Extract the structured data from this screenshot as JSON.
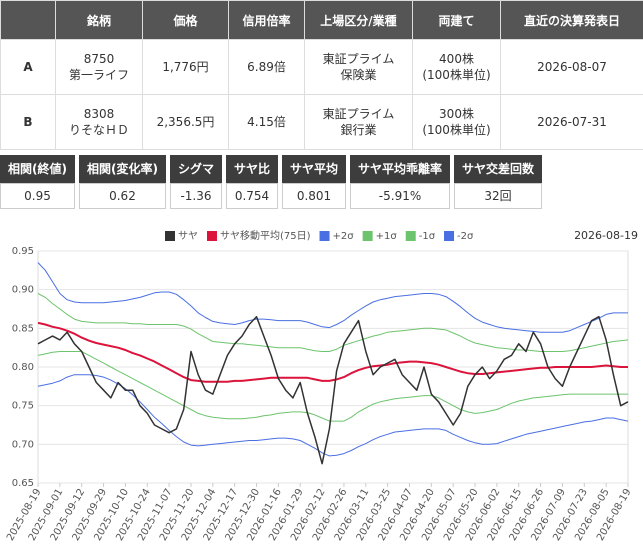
{
  "summary_table": {
    "headers": [
      "銘柄",
      "価格",
      "信用倍率",
      "上場区分/業種",
      "両建て",
      "直近の決算発表日"
    ],
    "rows": [
      [
        "A",
        "8750\n第一ライフ",
        "1,776円",
        "6.89倍",
        "東証プライム\n保険業",
        "400株\n(100株単位)",
        "2026-08-07"
      ],
      [
        "B",
        "8308\nりそなＨＤ",
        "2,356.5円",
        "4.15倍",
        "東証プライム\n銀行業",
        "300株\n(100株単位)",
        "2026-07-31"
      ]
    ]
  },
  "stats": {
    "headers": [
      "相関(終値)",
      "相関(変化率)",
      "シグマ",
      "サヤ比",
      "サヤ平均",
      "サヤ平均乖離率",
      "サヤ交差回数"
    ],
    "values": [
      "0.95",
      "0.62",
      "-1.36",
      "0.754",
      "0.801",
      "-5.91%",
      "32回"
    ]
  },
  "chart_data": {
    "type": "line",
    "date": "2026-08-19",
    "categories": [
      "2025-08-19",
      null,
      null,
      "2025-09-01",
      null,
      null,
      "2025-09-12",
      null,
      null,
      "2025-09-29",
      null,
      null,
      "2025-10-10",
      null,
      null,
      "2025-10-24",
      null,
      null,
      "2025-11-07",
      null,
      null,
      "2025-11-20",
      null,
      null,
      "2025-12-04",
      null,
      null,
      "2025-12-17",
      null,
      null,
      "2025-12-30",
      null,
      null,
      "2026-01-16",
      null,
      null,
      "2026-01-29",
      null,
      null,
      "2026-02-12",
      null,
      null,
      "2026-02-26",
      null,
      null,
      "2026-03-11",
      null,
      null,
      "2026-03-25",
      null,
      null,
      "2026-04-07",
      null,
      null,
      "2026-04-20",
      null,
      null,
      "2026-05-07",
      null,
      null,
      "2026-05-20",
      null,
      null,
      "2026-06-02",
      null,
      null,
      "2026-06-15",
      null,
      null,
      "2026-06-26",
      null,
      null,
      "2026-07-09",
      null,
      null,
      "2026-07-23",
      null,
      null,
      "2026-08-05",
      null,
      null,
      "2026-08-19"
    ],
    "ylim": [
      0.65,
      0.95
    ],
    "yticks": [
      0.65,
      {
        "value": 0.7,
        "label": "0.70"
      },
      0.75,
      {
        "value": 0.8,
        "label": "0.80"
      },
      0.85,
      {
        "value": 0.9,
        "label": "0.90"
      },
      0.95
    ],
    "grid": true,
    "series": [
      {
        "name": "サヤ",
        "color": "#333333",
        "width": 1.5,
        "values": [
          0.83,
          0.835,
          0.84,
          0.835,
          0.845,
          0.83,
          0.82,
          0.8,
          0.78,
          0.77,
          0.76,
          0.78,
          0.77,
          0.77,
          0.75,
          0.74,
          0.725,
          0.72,
          0.715,
          0.72,
          0.745,
          0.82,
          0.79,
          0.77,
          0.765,
          0.79,
          0.815,
          0.83,
          0.84,
          0.855,
          0.865,
          0.84,
          0.815,
          0.785,
          0.77,
          0.76,
          0.78,
          0.74,
          0.71,
          0.675,
          0.72,
          0.795,
          0.83,
          0.845,
          0.86,
          0.82,
          0.79,
          0.8,
          0.805,
          0.81,
          0.79,
          0.78,
          0.77,
          0.8,
          0.765,
          0.755,
          0.74,
          0.725,
          0.74,
          0.775,
          0.79,
          0.8,
          0.785,
          0.795,
          0.81,
          0.815,
          0.83,
          0.82,
          0.845,
          0.83,
          0.8,
          0.785,
          0.775,
          0.8,
          0.82,
          0.84,
          0.86,
          0.865,
          0.835,
          0.79,
          0.75,
          0.755
        ]
      },
      {
        "name": "サヤ移動平均(75日)",
        "color": "#dc143c",
        "width": 2,
        "values": [
          0.857,
          0.855,
          0.852,
          0.85,
          0.847,
          0.843,
          0.838,
          0.834,
          0.831,
          0.829,
          0.827,
          0.825,
          0.822,
          0.818,
          0.815,
          0.811,
          0.807,
          0.802,
          0.797,
          0.792,
          0.787,
          0.783,
          0.782,
          0.781,
          0.781,
          0.781,
          0.781,
          0.782,
          0.782,
          0.783,
          0.784,
          0.785,
          0.786,
          0.786,
          0.786,
          0.786,
          0.786,
          0.786,
          0.784,
          0.782,
          0.782,
          0.784,
          0.787,
          0.792,
          0.796,
          0.799,
          0.801,
          0.802,
          0.803,
          0.805,
          0.806,
          0.807,
          0.807,
          0.806,
          0.805,
          0.803,
          0.8,
          0.797,
          0.794,
          0.792,
          0.791,
          0.791,
          0.792,
          0.793,
          0.794,
          0.795,
          0.796,
          0.797,
          0.798,
          0.799,
          0.799,
          0.8,
          0.8,
          0.8,
          0.8,
          0.8,
          0.8,
          0.801,
          0.802,
          0.801,
          0.8,
          0.8
        ]
      },
      {
        "name": "+2σ",
        "color": "#4a6fe3",
        "width": 1,
        "values": [
          0.935,
          0.925,
          0.91,
          0.895,
          0.887,
          0.884,
          0.883,
          0.883,
          0.883,
          0.883,
          0.884,
          0.885,
          0.886,
          0.888,
          0.89,
          0.893,
          0.896,
          0.897,
          0.897,
          0.894,
          0.887,
          0.879,
          0.87,
          0.864,
          0.859,
          0.857,
          0.856,
          0.855,
          0.857,
          0.86,
          0.862,
          0.862,
          0.861,
          0.86,
          0.86,
          0.86,
          0.86,
          0.858,
          0.855,
          0.852,
          0.851,
          0.855,
          0.86,
          0.867,
          0.873,
          0.879,
          0.884,
          0.887,
          0.889,
          0.891,
          0.892,
          0.893,
          0.894,
          0.895,
          0.895,
          0.894,
          0.891,
          0.885,
          0.878,
          0.87,
          0.863,
          0.858,
          0.855,
          0.852,
          0.85,
          0.849,
          0.848,
          0.847,
          0.846,
          0.845,
          0.845,
          0.845,
          0.845,
          0.847,
          0.851,
          0.855,
          0.859,
          0.863,
          0.868,
          0.87,
          0.87,
          0.87
        ]
      },
      {
        "name": "+1σ",
        "color": "#6cc46c",
        "width": 1,
        "values": [
          0.895,
          0.89,
          0.882,
          0.875,
          0.868,
          0.862,
          0.859,
          0.858,
          0.857,
          0.857,
          0.857,
          0.857,
          0.857,
          0.856,
          0.856,
          0.855,
          0.855,
          0.855,
          0.855,
          0.855,
          0.853,
          0.849,
          0.843,
          0.838,
          0.833,
          0.832,
          0.831,
          0.83,
          0.83,
          0.829,
          0.828,
          0.827,
          0.826,
          0.825,
          0.825,
          0.825,
          0.825,
          0.823,
          0.821,
          0.82,
          0.82,
          0.823,
          0.828,
          0.831,
          0.834,
          0.837,
          0.84,
          0.842,
          0.845,
          0.846,
          0.847,
          0.848,
          0.849,
          0.85,
          0.85,
          0.849,
          0.848,
          0.844,
          0.84,
          0.835,
          0.831,
          0.829,
          0.827,
          0.825,
          0.824,
          0.823,
          0.822,
          0.822,
          0.821,
          0.82,
          0.82,
          0.82,
          0.82,
          0.821,
          0.823,
          0.825,
          0.827,
          0.829,
          0.831,
          0.833,
          0.834,
          0.835
        ]
      },
      {
        "name": "-1σ",
        "color": "#6cc46c",
        "width": 1,
        "values": [
          0.815,
          0.817,
          0.819,
          0.82,
          0.82,
          0.82,
          0.82,
          0.815,
          0.81,
          0.805,
          0.8,
          0.795,
          0.79,
          0.785,
          0.78,
          0.775,
          0.77,
          0.765,
          0.76,
          0.755,
          0.75,
          0.745,
          0.74,
          0.737,
          0.735,
          0.734,
          0.733,
          0.733,
          0.733,
          0.734,
          0.735,
          0.737,
          0.738,
          0.74,
          0.741,
          0.742,
          0.742,
          0.741,
          0.738,
          0.734,
          0.73,
          0.73,
          0.73,
          0.735,
          0.742,
          0.747,
          0.752,
          0.755,
          0.757,
          0.759,
          0.76,
          0.761,
          0.762,
          0.763,
          0.763,
          0.76,
          0.755,
          0.75,
          0.745,
          0.742,
          0.74,
          0.741,
          0.743,
          0.745,
          0.749,
          0.753,
          0.756,
          0.758,
          0.76,
          0.761,
          0.762,
          0.763,
          0.764,
          0.765,
          0.765,
          0.765,
          0.765,
          0.765,
          0.765,
          0.765,
          0.765,
          0.765
        ]
      },
      {
        "name": "-2σ",
        "color": "#4a6fe3",
        "width": 1,
        "values": [
          0.775,
          0.777,
          0.779,
          0.782,
          0.787,
          0.79,
          0.79,
          0.79,
          0.789,
          0.787,
          0.783,
          0.778,
          0.772,
          0.764,
          0.755,
          0.745,
          0.735,
          0.727,
          0.718,
          0.71,
          0.703,
          0.699,
          0.698,
          0.699,
          0.7,
          0.701,
          0.702,
          0.703,
          0.704,
          0.705,
          0.705,
          0.706,
          0.707,
          0.708,
          0.708,
          0.707,
          0.705,
          0.7,
          0.695,
          0.689,
          0.685,
          0.686,
          0.688,
          0.692,
          0.697,
          0.701,
          0.706,
          0.71,
          0.713,
          0.716,
          0.717,
          0.718,
          0.719,
          0.72,
          0.72,
          0.72,
          0.718,
          0.713,
          0.709,
          0.705,
          0.702,
          0.7,
          0.7,
          0.701,
          0.704,
          0.707,
          0.71,
          0.713,
          0.715,
          0.717,
          0.719,
          0.721,
          0.723,
          0.725,
          0.727,
          0.729,
          0.73,
          0.732,
          0.734,
          0.734,
          0.732,
          0.73
        ]
      }
    ]
  }
}
